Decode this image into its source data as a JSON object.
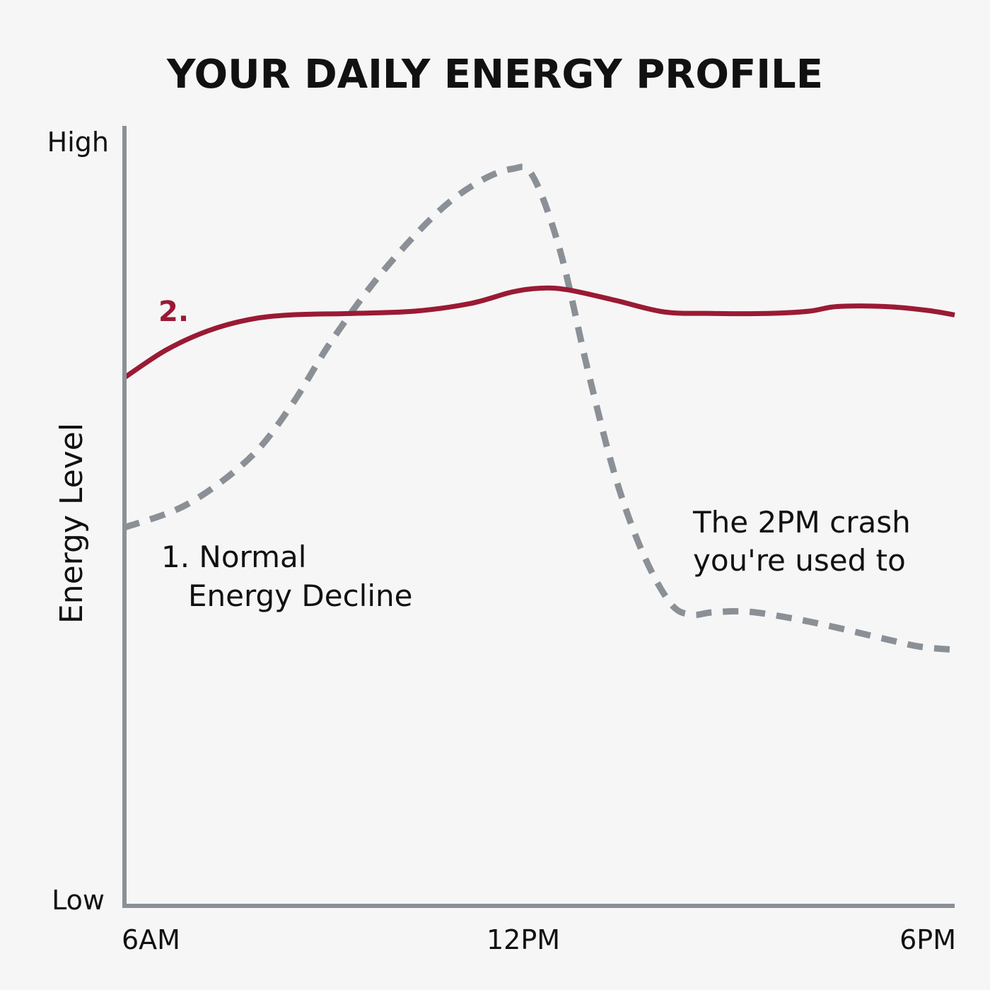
{
  "chart_data": {
    "type": "line",
    "title": "YOUR DAILY ENERGY PROFILE",
    "ylabel": "Energy Level",
    "xlabel": "",
    "x_ticks": [
      "6AM",
      "12PM",
      "6PM"
    ],
    "y_ticks": [
      "High",
      "Low"
    ],
    "xlim": [
      6,
      18
    ],
    "ylim": [
      0,
      100
    ],
    "series": [
      {
        "name": "1. Normal Energy Decline",
        "color": "#8a9096",
        "style": "dashed",
        "x": [
          6.0,
          6.9,
          7.8,
          8.4,
          9.0,
          9.7,
          10.5,
          11.1,
          11.6,
          11.9,
          12.3,
          12.7,
          13.1,
          13.5,
          13.9,
          14.2,
          14.5,
          15.0,
          15.6,
          16.2,
          17.0,
          17.5,
          18.0
        ],
        "values": [
          49.5,
          52.5,
          58.5,
          65.3,
          74.0,
          82.6,
          90.5,
          94.6,
          96.4,
          95.5,
          85.6,
          70.0,
          56.0,
          46.0,
          39.5,
          38.1,
          38.4,
          38.5,
          37.7,
          36.6,
          34.9,
          33.9,
          33.5
        ]
      },
      {
        "name": "2.",
        "color": "#9a1a34",
        "style": "solid",
        "x": [
          6.0,
          6.6,
          7.2,
          7.8,
          8.4,
          9.3,
          10.2,
          11.0,
          11.6,
          12.0,
          12.4,
          13.1,
          13.8,
          14.5,
          15.3,
          15.9,
          16.3,
          17.0,
          17.6,
          18.0
        ],
        "values": [
          69.1,
          72.7,
          75.2,
          76.7,
          77.3,
          77.5,
          77.8,
          78.8,
          80.3,
          80.8,
          80.6,
          79.2,
          77.7,
          77.5,
          77.5,
          77.8,
          78.4,
          78.4,
          77.9,
          77.3
        ]
      }
    ],
    "annotations": [
      {
        "text": "2.",
        "series": "2."
      },
      {
        "lines": [
          "1. Normal",
          "Energy Decline"
        ]
      },
      {
        "lines": [
          "The 2PM crash",
          "you're used to"
        ]
      }
    ],
    "grid": false,
    "legend": "none"
  }
}
